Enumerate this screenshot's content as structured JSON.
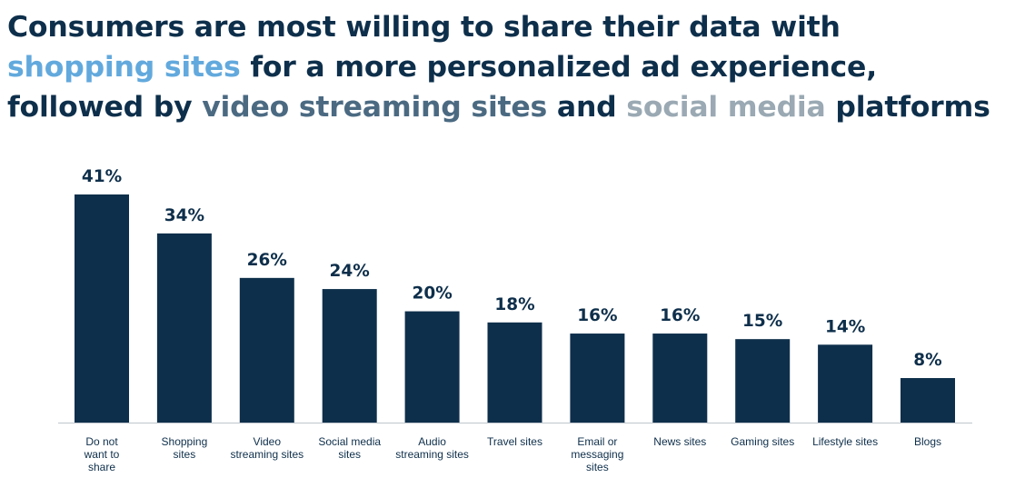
{
  "title": {
    "line1": "Consumers are most willing to share their data with",
    "line2_highlight": "shopping sites",
    "line2_rest": " for a more personalized ad experience,",
    "line3_start": "followed by ",
    "line3_highlight1": "video streaming sites",
    "line3_mid": " and ",
    "line3_highlight2": "social media",
    "line3_end": " platforms"
  },
  "colors": {
    "bar": "#0e2f4b",
    "title": "#0e2f4b",
    "highlight_shopping": "#62a9dd",
    "highlight_video": "#4b6a82",
    "highlight_social": "#9aa9b3"
  },
  "chart_data": {
    "type": "bar",
    "title": "Consumers are most willing to share their data with shopping sites for a more personalized ad experience, followed by video streaming sites and social media platforms",
    "xlabel": "",
    "ylabel": "",
    "ylim": [
      0,
      41
    ],
    "grid": false,
    "categories": [
      [
        "Do not",
        "want to",
        "share"
      ],
      [
        "Shopping",
        "sites"
      ],
      [
        "Video",
        "streaming sites"
      ],
      [
        "Social media",
        "sites"
      ],
      [
        "Audio",
        "streaming sites"
      ],
      [
        "Travel sites"
      ],
      [
        "Email or",
        "messaging",
        "sites"
      ],
      [
        "News sites"
      ],
      [
        "Gaming sites"
      ],
      [
        "Lifestyle sites"
      ],
      [
        "Blogs"
      ]
    ],
    "values": [
      41,
      34,
      26,
      24,
      20,
      18,
      16,
      16,
      15,
      14,
      8
    ],
    "value_labels": [
      "41%",
      "34%",
      "26%",
      "24%",
      "20%",
      "18%",
      "16%",
      "16%",
      "15%",
      "14%",
      "8%"
    ]
  }
}
